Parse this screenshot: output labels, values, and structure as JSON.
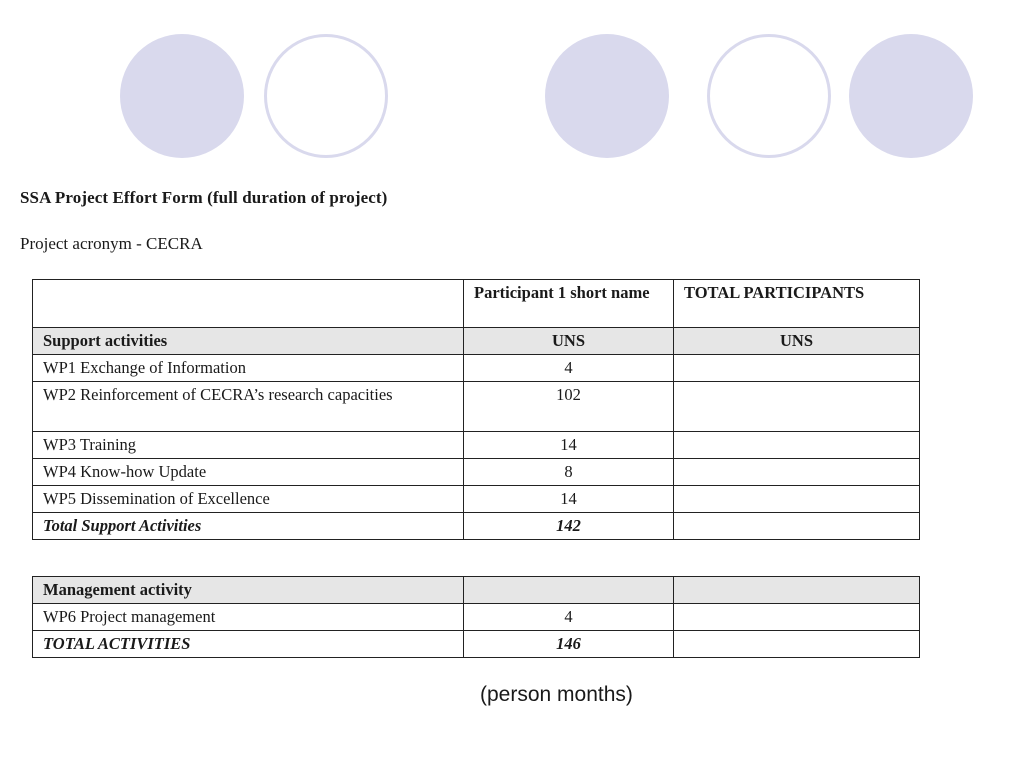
{
  "header_graphic": {
    "circles": [
      {
        "style": "filled"
      },
      {
        "style": "outline"
      },
      {
        "style": "filled"
      },
      {
        "style": "outline"
      },
      {
        "style": "filled"
      }
    ],
    "fill_color": "#d9d9ed"
  },
  "document": {
    "title": "SSA Project Effort Form (full duration of project)",
    "acronym_line": "Project acronym - CECRA"
  },
  "table_support": {
    "header": {
      "col1": "",
      "col2": "Participant  1 short name",
      "col3": "TOTAL PARTICIPANTS"
    },
    "section": {
      "label": "Support activities",
      "col2": "UNS",
      "col3": "UNS"
    },
    "rows": [
      {
        "activity": "WP1 Exchange of Information",
        "value": "4",
        "total": ""
      },
      {
        "activity": "WP2 Reinforcement of CECRA’s research capacities",
        "value": "102",
        "total": ""
      },
      {
        "activity": "WP3 Training",
        "value": "14",
        "total": ""
      },
      {
        "activity": "WP4 Know-how Update",
        "value": "8",
        "total": ""
      },
      {
        "activity": "WP5 Dissemination of Excellence",
        "value": "14",
        "total": ""
      }
    ],
    "total_row": {
      "label": "Total Support Activities",
      "value": "142",
      "total": ""
    }
  },
  "table_management": {
    "section": {
      "label": "Management activity",
      "col2": "",
      "col3": ""
    },
    "rows": [
      {
        "activity": "WP6 Project management",
        "value": "4",
        "total": ""
      }
    ],
    "total_row": {
      "label": "TOTAL ACTIVITIES",
      "value": "146",
      "total": ""
    }
  },
  "caption": "(person months)"
}
